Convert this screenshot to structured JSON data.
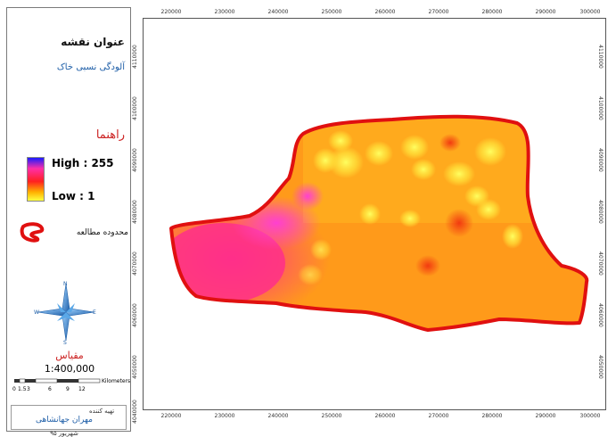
{
  "legend": {
    "title": "عنوان نقشه",
    "subtitle": "آلودگی نسبی خاک",
    "legend_heading": "راهنما",
    "ramp_high_label": "High : 255",
    "ramp_low_label": "Low : 1",
    "ramp_colors": [
      "#1a1aff",
      "#ff2fa8",
      "#ff2020",
      "#ffb000",
      "#ffff40"
    ],
    "study_area_label": "محدوده مطالعه",
    "study_area_color": "#e01010",
    "north_arrow": {
      "icon": "compass-rose-icon",
      "n": "N",
      "s": "S",
      "e": "E",
      "w": "W"
    },
    "scale_heading": "مقیاس",
    "scale_ratio": "1:400,000",
    "scale_ticks": [
      "0",
      "1.5",
      "3",
      "6",
      "9",
      "12"
    ],
    "scale_unit": "Kilometers",
    "author_caption": "تهیه کننده",
    "author_name": "مهران جهانشاهی",
    "date": "شهریور ۹۵"
  },
  "map": {
    "x_ticks": [
      "220000",
      "230000",
      "240000",
      "250000",
      "260000",
      "270000",
      "280000",
      "290000",
      "300000"
    ],
    "y_ticks": [
      "4110000",
      "4100000",
      "4090000",
      "4080000",
      "4070000",
      "4060000",
      "4050000",
      "4040000"
    ],
    "colors": {
      "base": "#ff9a1a",
      "hot": "#ff2f8a",
      "magenta": "#ff40d0",
      "yellow": "#ffe23a",
      "boundary": "#e01010"
    }
  }
}
